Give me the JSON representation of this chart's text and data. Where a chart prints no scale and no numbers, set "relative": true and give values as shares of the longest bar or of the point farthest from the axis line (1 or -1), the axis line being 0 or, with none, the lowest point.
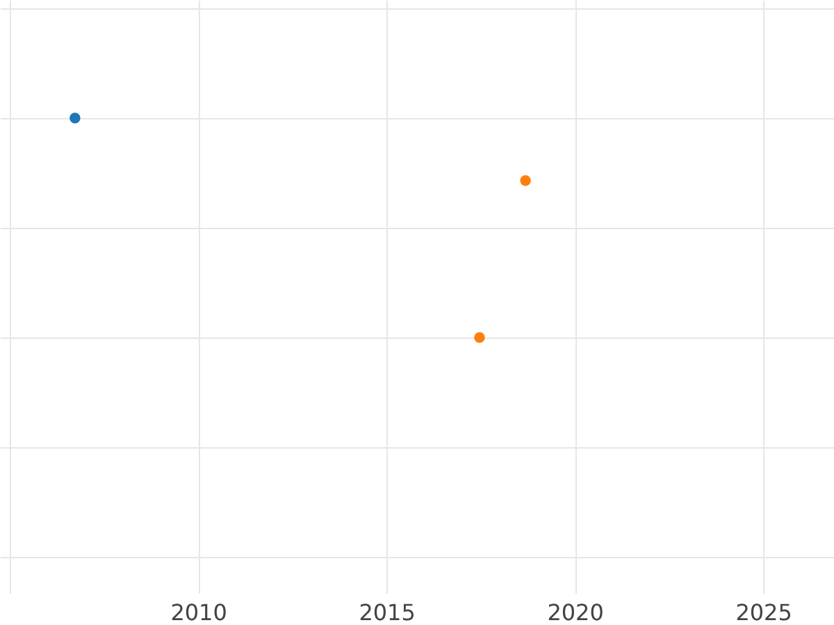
{
  "chart_data": {
    "type": "scatter",
    "relative": true,
    "marker": "circle",
    "grid": true,
    "tick_labels": "x",
    "xlim": [
      2004.74,
      2026.88
    ],
    "xticks": [
      {
        "value": 2005,
        "label": null
      },
      2010,
      2015,
      2020,
      2025
    ],
    "series": [
      {
        "color": "#1f77b4",
        "x": [
          2006.73
        ],
        "values": [
          1
        ]
      },
      {
        "color": "#ff7f0e",
        "x": [
          2018.69,
          2017.47
        ],
        "values": [
          0.715,
          0
        ]
      }
    ]
  }
}
